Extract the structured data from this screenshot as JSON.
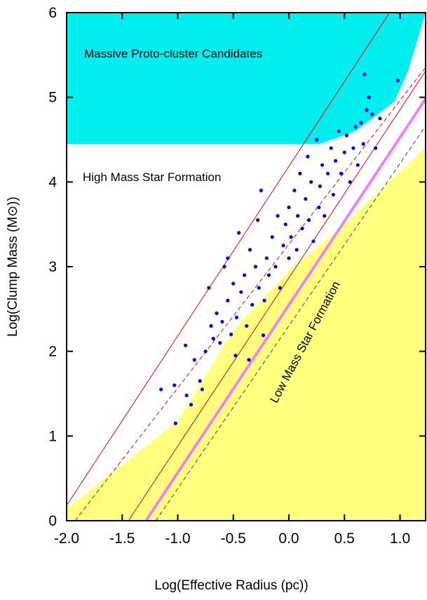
{
  "chart_data": {
    "type": "scatter",
    "x_label": "Log(Effective Radius (pc))",
    "y_label": "Log(Clump Mass (M⊙))",
    "annotations": [
      "Massive Proto-cluster Candidates",
      "High Mass Star Formation",
      "Low Mass Star Formation"
    ],
    "xlim": [
      -2.0,
      1.23
    ],
    "ylim": [
      0,
      6
    ],
    "xticks": [
      {
        "value": -2.0,
        "label": "-2.0"
      },
      {
        "value": -1.5,
        "label": "-1.5"
      },
      {
        "value": -1.0,
        "label": "-1.0"
      },
      {
        "value": -0.5,
        "label": "-0.5"
      },
      {
        "value": 0.0,
        "label": "0.0"
      },
      {
        "value": 0.5,
        "label": "0.5"
      },
      {
        "value": 1.0,
        "label": "1.0"
      }
    ],
    "yticks": [
      0,
      1,
      2,
      3,
      4,
      5,
      6
    ],
    "regions": [
      {
        "color": "#00eeee",
        "x": [
          -2.0,
          1.23,
          1.23,
          1.07,
          0.95,
          0.8,
          0.6,
          0.28,
          -2.0
        ],
        "y": [
          6,
          6,
          6,
          5.3,
          4.95,
          4.8,
          4.6,
          4.45,
          4.45
        ]
      },
      {
        "color": "#ffff80",
        "x": [
          -2.0,
          -1.0,
          -0.5,
          0.0,
          0.5,
          1.23,
          1.23,
          -2.0
        ],
        "y": [
          0.14,
          1.18,
          2.25,
          2.95,
          3.5,
          4.41,
          0,
          0
        ]
      }
    ],
    "lines": [
      {
        "color": "#ee0000",
        "style": "solid",
        "width": 1,
        "x": [
          -2.0,
          0.906
        ],
        "y": [
          0.18,
          6
        ]
      },
      {
        "color": "#ee0000",
        "style": "dashed",
        "width": 1,
        "x": [
          -1.924,
          1.234
        ],
        "y": [
          0,
          5.36
        ]
      },
      {
        "color": "#ee0000",
        "style": "solid",
        "width": 1,
        "x": [
          -1.444,
          1.234
        ],
        "y": [
          0,
          5.32
        ]
      },
      {
        "color": "#ee82ee",
        "style": "solid",
        "width": 4,
        "x": [
          -1.286,
          1.234
        ],
        "y": [
          0,
          4.99
        ]
      },
      {
        "color": "#444444",
        "style": "dashed",
        "width": 1,
        "x": [
          -1.198,
          1.234
        ],
        "y": [
          0,
          4.67
        ]
      }
    ],
    "points": {
      "color": "#0000dd",
      "x": [
        -1.15,
        -1.02,
        -1.03,
        -0.92,
        -0.88,
        -0.93,
        -0.85,
        -0.8,
        -0.78,
        -0.75,
        -0.72,
        -0.7,
        -0.68,
        -0.65,
        -0.62,
        -0.6,
        -0.58,
        -0.55,
        -0.55,
        -0.52,
        -0.5,
        -0.48,
        -0.47,
        -0.45,
        -0.43,
        -0.4,
        -0.38,
        -0.35,
        -0.33,
        -0.3,
        -0.28,
        -0.27,
        -0.25,
        -0.22,
        -0.2,
        -0.18,
        -0.15,
        -0.12,
        -0.1,
        -0.08,
        -0.05,
        -0.03,
        0.0,
        0.0,
        0.02,
        0.05,
        0.07,
        0.08,
        0.1,
        0.12,
        0.15,
        0.17,
        0.18,
        0.2,
        0.22,
        0.25,
        0.27,
        0.28,
        0.3,
        0.32,
        0.35,
        0.38,
        0.4,
        0.42,
        0.45,
        0.47,
        0.5,
        0.52,
        0.55,
        0.58,
        0.6,
        0.62,
        0.65,
        0.67,
        0.68,
        0.7,
        0.72,
        0.75,
        0.78,
        0.82,
        0.98,
        -0.36,
        -0.23
      ],
      "y": [
        1.55,
        1.15,
        1.6,
        1.48,
        1.37,
        2.07,
        1.9,
        1.65,
        1.55,
        2.0,
        2.75,
        2.3,
        2.15,
        2.45,
        2.1,
        2.35,
        3.0,
        2.6,
        3.1,
        2.2,
        2.8,
        1.95,
        2.4,
        3.4,
        2.7,
        2.9,
        2.3,
        3.2,
        2.55,
        3.0,
        3.55,
        2.75,
        3.9,
        2.6,
        3.1,
        2.9,
        3.35,
        3.0,
        3.6,
        2.75,
        3.25,
        3.5,
        3.1,
        3.7,
        3.35,
        3.9,
        3.2,
        3.6,
        4.1,
        3.45,
        3.8,
        4.3,
        3.55,
        4.0,
        3.3,
        4.5,
        3.7,
        3.95,
        4.2,
        3.6,
        4.1,
        4.4,
        3.85,
        4.25,
        4.6,
        4.1,
        4.35,
        4.55,
        4.0,
        4.4,
        4.65,
        4.2,
        4.7,
        4.45,
        5.27,
        4.85,
        5.0,
        4.8,
        4.4,
        4.75,
        5.2,
        1.9,
        2.19
      ]
    }
  }
}
